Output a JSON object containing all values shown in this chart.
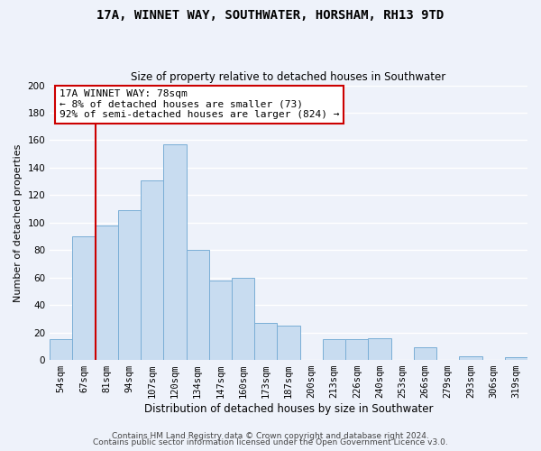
{
  "title": "17A, WINNET WAY, SOUTHWATER, HORSHAM, RH13 9TD",
  "subtitle": "Size of property relative to detached houses in Southwater",
  "xlabel": "Distribution of detached houses by size in Southwater",
  "ylabel": "Number of detached properties",
  "bar_labels": [
    "54sqm",
    "67sqm",
    "81sqm",
    "94sqm",
    "107sqm",
    "120sqm",
    "134sqm",
    "147sqm",
    "160sqm",
    "173sqm",
    "187sqm",
    "200sqm",
    "213sqm",
    "226sqm",
    "240sqm",
    "253sqm",
    "266sqm",
    "279sqm",
    "293sqm",
    "306sqm",
    "319sqm"
  ],
  "bar_values": [
    15,
    90,
    98,
    109,
    131,
    157,
    80,
    58,
    60,
    27,
    25,
    0,
    15,
    15,
    16,
    0,
    9,
    0,
    3,
    0,
    2
  ],
  "bar_color": "#c8dcf0",
  "bar_edge_color": "#7aaed6",
  "ylim": [
    0,
    200
  ],
  "yticks": [
    0,
    20,
    40,
    60,
    80,
    100,
    120,
    140,
    160,
    180,
    200
  ],
  "vline_bar_index": 2,
  "vline_color": "#cc0000",
  "annotation_title": "17A WINNET WAY: 78sqm",
  "annotation_line1": "← 8% of detached houses are smaller (73)",
  "annotation_line2": "92% of semi-detached houses are larger (824) →",
  "annotation_box_color": "#ffffff",
  "annotation_box_edge": "#cc0000",
  "footer1": "Contains HM Land Registry data © Crown copyright and database right 2024.",
  "footer2": "Contains public sector information licensed under the Open Government Licence v3.0.",
  "background_color": "#eef2fa",
  "grid_color": "#ffffff",
  "title_fontsize": 10,
  "subtitle_fontsize": 8.5,
  "ylabel_fontsize": 8,
  "xlabel_fontsize": 8.5,
  "tick_fontsize": 7.5,
  "footer_fontsize": 6.5,
  "ann_fontsize": 8
}
